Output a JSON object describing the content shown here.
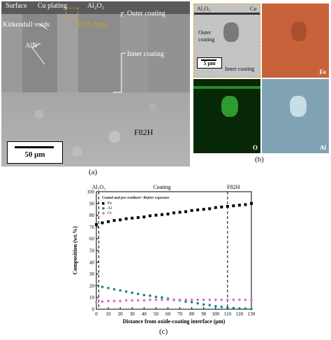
{
  "panel_a": {
    "labels": {
      "surface": "Surface",
      "cu_plating": "Cu plating",
      "al2o3": "Al₂O₃",
      "outer_coating": "Outer coating",
      "kirkendall": "Kirkendall voids",
      "eds_maps": "EDS maps",
      "aln": "AlN",
      "inner_coating": "Inner coating",
      "f82h": "F82H",
      "scale": "50 μm"
    },
    "caption": "(a)"
  },
  "panel_b": {
    "labels": {
      "al2o3": "Al₂O₃",
      "cu": "Cu",
      "outer": "Outer",
      "coating": "coating",
      "scale": "5 μm",
      "inner": "Inner coating"
    },
    "maps": [
      "Fe",
      "O",
      "Al"
    ],
    "colors": {
      "fe": "#c8623a",
      "o": "#0b5a10",
      "al": "#7fa3b3"
    },
    "caption": "(b)"
  },
  "panel_c": {
    "caption": "(c)",
    "chart_data": {
      "type": "scatter",
      "xlabel": "Distance from oxide-coating interface (μm)",
      "ylabel": "Composition (wt.%)",
      "xlim": [
        0,
        130
      ],
      "ylim": [
        0,
        100
      ],
      "xticks": [
        0,
        10,
        20,
        30,
        40,
        50,
        60,
        70,
        80,
        90,
        100,
        110,
        120,
        130
      ],
      "yticks": [
        0,
        10,
        20,
        30,
        40,
        50,
        60,
        70,
        80,
        90,
        100
      ],
      "legend_title": "Coated and pre-oxidized / Before exposure",
      "legend_position": "top-left",
      "annotations": [
        {
          "text": "Al₂O₃",
          "x": 2
        },
        {
          "text": "Coating",
          "x": 55
        },
        {
          "text": "F82H",
          "x": 115
        }
      ],
      "vlines": [
        2,
        110
      ],
      "series": [
        {
          "name": "Fe",
          "color": "#000000",
          "marker": "square",
          "x": [
            0,
            5,
            10,
            15,
            20,
            25,
            30,
            35,
            40,
            45,
            50,
            55,
            60,
            65,
            70,
            75,
            80,
            85,
            90,
            95,
            100,
            105,
            110,
            115,
            120,
            125,
            130
          ],
          "y": [
            72,
            73.5,
            74.5,
            75.5,
            76,
            77,
            77.5,
            78,
            78.5,
            79.5,
            80,
            80.5,
            81,
            82,
            82.5,
            83,
            84,
            84.5,
            85,
            85.5,
            86.5,
            87,
            87.5,
            88,
            88.5,
            89,
            90
          ]
        },
        {
          "name": "Al",
          "color": "#138a8a",
          "marker": "circle",
          "x": [
            0,
            5,
            10,
            15,
            20,
            25,
            30,
            35,
            40,
            45,
            50,
            55,
            60,
            65,
            70,
            75,
            80,
            85,
            90,
            95,
            100,
            105,
            110,
            115,
            120,
            125,
            130
          ],
          "y": [
            20,
            19,
            18,
            17,
            16,
            15,
            14,
            13,
            12,
            11.5,
            10.5,
            10,
            9,
            8,
            7.5,
            6.5,
            6,
            5,
            4,
            3.5,
            2.5,
            2,
            1.5,
            1,
            0.5,
            0.5,
            0.3
          ]
        },
        {
          "name": "Cr",
          "color": "#e070c8",
          "marker": "circle",
          "x": [
            0,
            5,
            10,
            15,
            20,
            25,
            30,
            35,
            40,
            45,
            50,
            55,
            60,
            65,
            70,
            75,
            80,
            85,
            90,
            95,
            100,
            105,
            110,
            115,
            120,
            125,
            130
          ],
          "y": [
            6,
            6.5,
            7,
            7,
            7,
            7.5,
            7.5,
            7.5,
            7.5,
            8,
            8,
            8,
            8,
            8,
            8,
            8,
            8,
            8,
            8,
            8,
            8,
            8,
            8,
            8,
            8,
            8,
            8
          ]
        }
      ]
    }
  }
}
